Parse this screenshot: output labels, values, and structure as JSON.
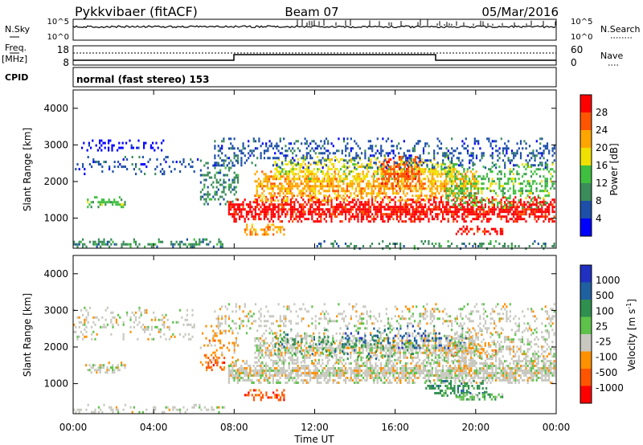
{
  "header": {
    "station": "Pykkvibaer (fitACF)",
    "beam": "Beam 07",
    "date": "05/Mar/2016"
  },
  "top_panels": {
    "nsky_label": "N.Sky",
    "nsearch_label": "N.Search",
    "noise_ticks_left": [
      "10^5",
      "10^0"
    ],
    "noise_ticks_right": [
      "10^5",
      "10^0"
    ],
    "freq_label": "Freq.",
    "freq_unit": "[MHz]",
    "freq_ticks": [
      "18",
      "8"
    ],
    "nave_label": "Nave",
    "nave_ticks": [
      "60",
      "0"
    ],
    "cpid_label": "CPID",
    "cpid_text": "normal (fast stereo) 153"
  },
  "colors": {
    "power_scale": [
      "#0000ff",
      "#1d4fa8",
      "#3b8c5a",
      "#3fbf3f",
      "#f0e000",
      "#ffa500",
      "#ff5500",
      "#ff0000"
    ],
    "velocity_scale": [
      "#ff0000",
      "#ff5500",
      "#ff9000",
      "#c8c8c0",
      "#5ec24a",
      "#2f8f4f",
      "#1f60a0",
      "#2030c0"
    ],
    "ground_scatter": "#c8c8c0"
  },
  "chart_data": [
    {
      "type": "heatmap",
      "panel": "power",
      "ylabel": "Slant Range [km]",
      "y_ticks": [
        1000,
        2000,
        3000,
        4000
      ],
      "ylim": [
        180,
        4500
      ],
      "xlim": [
        "00:00",
        "24:00"
      ],
      "colorbar_label": "Power [dB]",
      "colorbar_ticks": [
        "28",
        "24",
        "20",
        "16",
        "12",
        "8",
        "4"
      ],
      "blobs": [
        {
          "t0": 0.0,
          "t1": 6.2,
          "r0": 2200,
          "r1": 2700,
          "level": 1,
          "density": 0.25
        },
        {
          "t0": 0.4,
          "t1": 4.6,
          "r0": 2850,
          "r1": 3150,
          "level": 0,
          "density": 0.35
        },
        {
          "t0": 0.6,
          "t1": 2.6,
          "r0": 1300,
          "r1": 1600,
          "level": 3,
          "density": 0.6
        },
        {
          "t0": 0.0,
          "t1": 7.5,
          "r0": 200,
          "r1": 450,
          "level": 2,
          "density": 0.45
        },
        {
          "t0": 6.3,
          "t1": 8.2,
          "r0": 1400,
          "r1": 2600,
          "level": 2,
          "density": 0.5
        },
        {
          "t0": 8.5,
          "t1": 10.5,
          "r0": 550,
          "r1": 850,
          "level": 5,
          "density": 0.6
        },
        {
          "t0": 7.7,
          "t1": 23.9,
          "r0": 900,
          "r1": 1600,
          "level": 7,
          "density": 0.85
        },
        {
          "t0": 9.0,
          "t1": 20.0,
          "r0": 1500,
          "r1": 2300,
          "level": 5,
          "density": 0.7
        },
        {
          "t0": 10.0,
          "t1": 19.0,
          "r0": 2000,
          "r1": 2700,
          "level": 4,
          "density": 0.55
        },
        {
          "t0": 15.3,
          "t1": 17.2,
          "r0": 1800,
          "r1": 2700,
          "level": 6,
          "density": 0.7
        },
        {
          "t0": 7.0,
          "t1": 23.9,
          "r0": 2400,
          "r1": 3200,
          "level": 1,
          "density": 0.35
        },
        {
          "t0": 18.5,
          "t1": 23.9,
          "r0": 1300,
          "r1": 2500,
          "level": 3,
          "density": 0.45
        },
        {
          "t0": 19.0,
          "t1": 21.3,
          "r0": 600,
          "r1": 800,
          "level": 7,
          "density": 0.7
        },
        {
          "t0": 12.0,
          "t1": 23.9,
          "r0": 200,
          "r1": 400,
          "level": 2,
          "density": 0.3
        }
      ]
    },
    {
      "type": "heatmap",
      "panel": "velocity",
      "ylabel": "Slant Range [km]",
      "xlabel": "Time UT",
      "y_ticks": [
        1000,
        2000,
        3000,
        4000
      ],
      "ylim": [
        180,
        4500
      ],
      "xlim": [
        "00:00",
        "24:00"
      ],
      "x_ticks": [
        "00:00",
        "04:00",
        "08:00",
        "12:00",
        "16:00",
        "20:00",
        "00:00"
      ],
      "colorbar_label": "Velocity [m s^-1]",
      "colorbar_ticks": [
        "1000",
        "500",
        "100",
        "25",
        "-25",
        "-100",
        "-500",
        "-1000"
      ],
      "blobs": [
        {
          "t0": 0.0,
          "t1": 6.0,
          "r0": 2200,
          "r1": 3100,
          "level": 3,
          "density": 0.25
        },
        {
          "t0": 0.6,
          "t1": 2.6,
          "r0": 1300,
          "r1": 1600,
          "level": 3,
          "density": 0.6
        },
        {
          "t0": 0.0,
          "t1": 7.5,
          "r0": 200,
          "r1": 450,
          "level": 3,
          "density": 0.4
        },
        {
          "t0": 6.3,
          "t1": 8.2,
          "r0": 1400,
          "r1": 2600,
          "level": 2,
          "density": 0.3
        },
        {
          "t0": 8.5,
          "t1": 10.5,
          "r0": 550,
          "r1": 850,
          "level": 1,
          "density": 0.6
        },
        {
          "t0": 7.7,
          "t1": 23.9,
          "r0": 1000,
          "r1": 1650,
          "level": 3,
          "density": 0.9
        },
        {
          "t0": 9.0,
          "t1": 20.0,
          "r0": 1600,
          "r1": 2400,
          "level": 3,
          "density": 0.75
        },
        {
          "t0": 10.0,
          "t1": 17.0,
          "r0": 1700,
          "r1": 2500,
          "level": 5,
          "density": 0.2
        },
        {
          "t0": 13.5,
          "t1": 19.5,
          "r0": 1900,
          "r1": 2600,
          "level": 6,
          "density": 0.2
        },
        {
          "t0": 17.5,
          "t1": 20.5,
          "r0": 700,
          "r1": 1100,
          "level": 5,
          "density": 0.5
        },
        {
          "t0": 18.5,
          "t1": 21.0,
          "r0": 1700,
          "r1": 2200,
          "level": 2,
          "density": 0.35
        },
        {
          "t0": 7.0,
          "t1": 23.9,
          "r0": 2400,
          "r1": 3200,
          "level": 3,
          "density": 0.3
        },
        {
          "t0": 18.5,
          "t1": 23.9,
          "r0": 1300,
          "r1": 2500,
          "level": 3,
          "density": 0.45
        },
        {
          "t0": 19.0,
          "t1": 21.3,
          "r0": 550,
          "r1": 800,
          "level": 4,
          "density": 0.7
        },
        {
          "t0": 6.5,
          "t1": 7.5,
          "r0": 1400,
          "r1": 1800,
          "level": 1,
          "density": 0.4
        }
      ]
    }
  ]
}
